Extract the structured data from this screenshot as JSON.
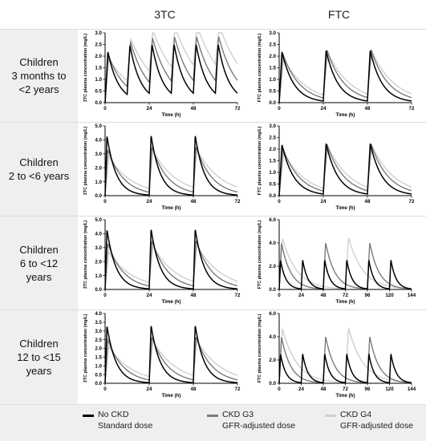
{
  "headers": {
    "col1": "3TC",
    "col2": "FTC"
  },
  "rows": [
    "Children\n3 months to\n<2 years",
    "Children\n2 to <6 years",
    "Children\n6 to <12\nyears",
    "Children\n12 to <15\nyears"
  ],
  "colors": {
    "no_ckd": "#000000",
    "ckd_g3": "#7a7a7a",
    "ckd_g4": "#cfcfcf"
  },
  "legend": [
    {
      "label": "No CKD\nStandard dose",
      "color": "#000000"
    },
    {
      "label": "CKD G3\nGFR-adjusted dose",
      "color": "#7a7a7a"
    },
    {
      "label": "CKD G4\nGFR-adjusted dose",
      "color": "#cfcfcf"
    }
  ],
  "chart_data": [
    {
      "type": "line",
      "row": 0,
      "col": 0,
      "xlabel": "Time (h)",
      "ylabel": "3TC plasma concentration (mg/L)",
      "xlim": [
        0,
        72
      ],
      "xticks": [
        "0",
        "24",
        "48",
        "72"
      ],
      "ylim": [
        0,
        3
      ],
      "yticks": [
        "0.0",
        "0.5",
        "1.0",
        "1.5",
        "2.0",
        "2.5",
        "3.0"
      ],
      "series": [
        {
          "color_key": "no_ckd",
          "dose_times": [
            0,
            12,
            24,
            36,
            48,
            60
          ],
          "peak": 2.2,
          "tmax": 1.5,
          "half_life": 4.0
        },
        {
          "color_key": "ckd_g3",
          "dose_times": [
            0,
            12,
            24,
            36,
            48,
            60
          ],
          "peak": 2.05,
          "tmax": 1.8,
          "half_life": 6.5
        },
        {
          "color_key": "ckd_g4",
          "dose_times": [
            0,
            12,
            24,
            36,
            48,
            60
          ],
          "peak": 1.9,
          "tmax": 2.0,
          "half_life": 10.0
        }
      ]
    },
    {
      "type": "line",
      "row": 0,
      "col": 1,
      "xlabel": "Time (h)",
      "ylabel": "FTC plasma concentration (mg/L)",
      "xlim": [
        0,
        72
      ],
      "xticks": [
        "0",
        "24",
        "48",
        "72"
      ],
      "ylim": [
        0,
        3
      ],
      "yticks": [
        "0.0",
        "0.5",
        "1.0",
        "1.5",
        "2.0",
        "2.5",
        "3.0"
      ],
      "series": [
        {
          "color_key": "no_ckd",
          "dose_times": [
            0,
            24,
            48
          ],
          "peak": 2.2,
          "tmax": 1.5,
          "half_life": 4.5
        },
        {
          "color_key": "ckd_g3",
          "dose_times": [
            0,
            24,
            48
          ],
          "peak": 2.1,
          "tmax": 2.0,
          "half_life": 6.5
        },
        {
          "color_key": "ckd_g4",
          "dose_times": [
            0,
            24,
            48
          ],
          "peak": 1.9,
          "tmax": 2.5,
          "half_life": 8.5
        }
      ]
    },
    {
      "type": "line",
      "row": 1,
      "col": 0,
      "xlabel": "Time (h)",
      "ylabel": "3TC plasma concentration (mg/L)",
      "xlim": [
        0,
        72
      ],
      "xticks": [
        "0",
        "24",
        "48",
        "72"
      ],
      "ylim": [
        0,
        5
      ],
      "yticks": [
        "0.0",
        "1.0",
        "2.0",
        "3.0",
        "4.0",
        "5.0"
      ],
      "series": [
        {
          "color_key": "no_ckd",
          "dose_times": [
            0,
            24,
            48
          ],
          "peak": 4.3,
          "tmax": 1.0,
          "half_life": 3.5
        },
        {
          "color_key": "ckd_g3",
          "dose_times": [
            0,
            24,
            48
          ],
          "peak": 3.3,
          "tmax": 1.5,
          "half_life": 6.0
        },
        {
          "color_key": "ckd_g4",
          "dose_times": [
            0,
            24,
            48
          ],
          "peak": 2.8,
          "tmax": 2.0,
          "half_life": 9.0
        }
      ]
    },
    {
      "type": "line",
      "row": 1,
      "col": 1,
      "xlabel": "Time (h)",
      "ylabel": "FTC plasma concentration (mg/L)",
      "xlim": [
        0,
        72
      ],
      "xticks": [
        "0",
        "24",
        "48",
        "72"
      ],
      "ylim": [
        0,
        3
      ],
      "yticks": [
        "0.0",
        "0.5",
        "1.0",
        "1.5",
        "2.0",
        "2.5",
        "3.0"
      ],
      "series": [
        {
          "color_key": "no_ckd",
          "dose_times": [
            0,
            24,
            48
          ],
          "peak": 2.2,
          "tmax": 1.5,
          "half_life": 4.5
        },
        {
          "color_key": "ckd_g3",
          "dose_times": [
            0,
            24,
            48
          ],
          "peak": 2.05,
          "tmax": 2.0,
          "half_life": 6.5
        },
        {
          "color_key": "ckd_g4",
          "dose_times": [
            0,
            24,
            48
          ],
          "peak": 1.85,
          "tmax": 2.5,
          "half_life": 8.5
        }
      ]
    },
    {
      "type": "line",
      "row": 2,
      "col": 0,
      "xlabel": "Time (h)",
      "ylabel": "3TC plasma concentration (mg/L)",
      "xlim": [
        0,
        72
      ],
      "xticks": [
        "0",
        "24",
        "48",
        "72"
      ],
      "ylim": [
        0,
        5
      ],
      "yticks": [
        "0.0",
        "1.0",
        "2.0",
        "3.0",
        "4.0",
        "5.0"
      ],
      "series": [
        {
          "color_key": "no_ckd",
          "dose_times": [
            0,
            24,
            48
          ],
          "peak": 4.3,
          "tmax": 1.0,
          "half_life": 3.5
        },
        {
          "color_key": "ckd_g3",
          "dose_times": [
            0,
            24,
            48
          ],
          "peak": 3.3,
          "tmax": 1.5,
          "half_life": 6.0
        },
        {
          "color_key": "ckd_g4",
          "dose_times": [
            0,
            24,
            48
          ],
          "peak": 2.7,
          "tmax": 2.0,
          "half_life": 9.0
        }
      ]
    },
    {
      "type": "line",
      "row": 2,
      "col": 1,
      "xlabel": "Time (h)",
      "ylabel": "FTC plasma concentration (mg/L)",
      "xlim": [
        0,
        144
      ],
      "xticks": [
        "0",
        "24",
        "48",
        "72",
        "96",
        "120",
        "144"
      ],
      "ylim": [
        0,
        6
      ],
      "yticks": [
        "0.0",
        "2.0",
        "4.0",
        "6.0"
      ],
      "series": [
        {
          "color_key": "no_ckd",
          "dose_times": [
            0,
            24,
            48,
            72,
            96,
            120
          ],
          "peak": 2.5,
          "tmax": 1.5,
          "half_life": 4.0
        },
        {
          "color_key": "ckd_g3",
          "dose_times": [
            0,
            48,
            96
          ],
          "peak": 4.0,
          "tmax": 2.5,
          "half_life": 7.0
        },
        {
          "color_key": "ckd_g4",
          "dose_times": [
            0,
            72
          ],
          "peak": 4.4,
          "tmax": 3.5,
          "half_life": 11.0
        }
      ]
    },
    {
      "type": "line",
      "row": 3,
      "col": 0,
      "xlabel": "Time (h)",
      "ylabel": "3TC plasma concentration (mg/L)",
      "xlim": [
        0,
        72
      ],
      "xticks": [
        "0",
        "24",
        "48",
        "72"
      ],
      "ylim": [
        0,
        4
      ],
      "yticks": [
        "0.0",
        "0.5",
        "1.0",
        "1.5",
        "2.0",
        "2.5",
        "3.0",
        "3.5",
        "4.0"
      ],
      "series": [
        {
          "color_key": "no_ckd",
          "dose_times": [
            0,
            24,
            48
          ],
          "peak": 3.3,
          "tmax": 1.0,
          "half_life": 3.5
        },
        {
          "color_key": "ckd_g3",
          "dose_times": [
            0,
            24,
            48
          ],
          "peak": 2.5,
          "tmax": 1.5,
          "half_life": 6.0
        },
        {
          "color_key": "ckd_g4",
          "dose_times": [
            0,
            24,
            48
          ],
          "peak": 2.1,
          "tmax": 2.0,
          "half_life": 9.0
        }
      ]
    },
    {
      "type": "line",
      "row": 3,
      "col": 1,
      "xlabel": "Time (h)",
      "ylabel": "FTC plasma concentration (mg/L)",
      "xlim": [
        0,
        144
      ],
      "xticks": [
        "0",
        "24",
        "48",
        "72",
        "96",
        "120",
        "144"
      ],
      "ylim": [
        0,
        6
      ],
      "yticks": [
        "0.0",
        "2.0",
        "4.0",
        "6.0"
      ],
      "series": [
        {
          "color_key": "no_ckd",
          "dose_times": [
            0,
            24,
            48,
            72,
            96,
            120
          ],
          "peak": 2.5,
          "tmax": 1.5,
          "half_life": 4.0
        },
        {
          "color_key": "ckd_g3",
          "dose_times": [
            0,
            48,
            96
          ],
          "peak": 4.0,
          "tmax": 2.5,
          "half_life": 7.0
        },
        {
          "color_key": "ckd_g4",
          "dose_times": [
            0,
            72
          ],
          "peak": 4.7,
          "tmax": 3.5,
          "half_life": 11.0
        }
      ]
    }
  ]
}
